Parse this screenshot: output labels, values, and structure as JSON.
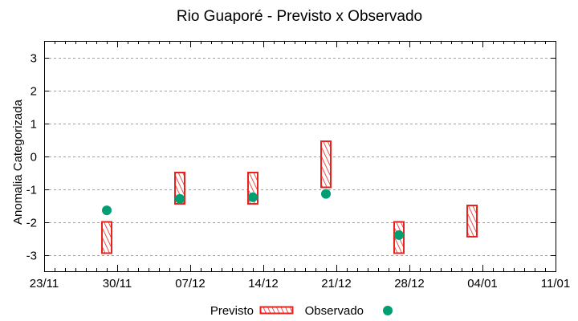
{
  "chart_data": {
    "type": "box-and-point",
    "title": "Rio Guaporé - Previsto x Observado",
    "xlabel": "",
    "ylabel": "Anomalia Categorizada",
    "ylim": [
      -3.5,
      3.5
    ],
    "yticks": [
      3,
      2,
      1,
      0,
      -1,
      -2,
      -3
    ],
    "xlim": [
      "23/11",
      "11/01"
    ],
    "xticks": [
      "23/11",
      "30/11",
      "07/12",
      "14/12",
      "21/12",
      "28/12",
      "04/01",
      "11/01"
    ],
    "grid": "horizontal dashed",
    "legend_position": "bottom center",
    "series": [
      {
        "name": "Previsto",
        "kind": "range-box",
        "color": "#e8231e",
        "pattern": "diagonal-hatch",
        "points": [
          {
            "date": "29/11",
            "low": -2.95,
            "high": -2.0
          },
          {
            "date": "06/12",
            "low": -1.45,
            "high": -0.5
          },
          {
            "date": "13/12",
            "low": -1.45,
            "high": -0.5
          },
          {
            "date": "20/12",
            "low": -0.95,
            "high": 0.45
          },
          {
            "date": "27/12",
            "low": -2.95,
            "high": -2.0
          },
          {
            "date": "03/01",
            "low": -2.45,
            "high": -1.5
          }
        ]
      },
      {
        "name": "Observado",
        "kind": "point",
        "color": "#009e73",
        "points": [
          {
            "date": "29/11",
            "value": -1.65
          },
          {
            "date": "06/12",
            "value": -1.3
          },
          {
            "date": "13/12",
            "value": -1.25
          },
          {
            "date": "20/12",
            "value": -1.15
          },
          {
            "date": "27/12",
            "value": -2.4
          }
        ]
      }
    ]
  }
}
